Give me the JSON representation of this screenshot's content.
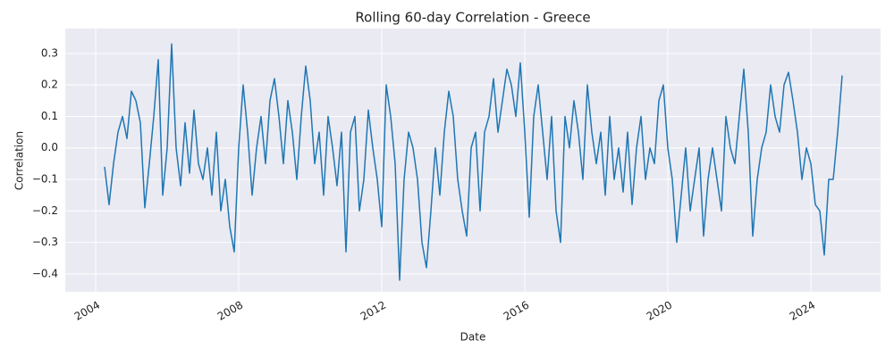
{
  "chart_data": {
    "type": "line",
    "title": "Rolling 60-day Correlation - Greece",
    "xlabel": "Date",
    "ylabel": "Correlation",
    "x": [
      2004.25,
      2004.375,
      2004.5,
      2004.625,
      2004.75,
      2004.875,
      2005,
      2005.125,
      2005.25,
      2005.375,
      2005.5,
      2005.625,
      2005.75,
      2005.875,
      2006,
      2006.125,
      2006.25,
      2006.375,
      2006.5,
      2006.625,
      2006.75,
      2006.875,
      2007,
      2007.125,
      2007.25,
      2007.375,
      2007.5,
      2007.625,
      2007.75,
      2007.875,
      2008,
      2008.125,
      2008.25,
      2008.375,
      2008.5,
      2008.625,
      2008.75,
      2008.875,
      2009,
      2009.125,
      2009.25,
      2009.375,
      2009.5,
      2009.625,
      2009.75,
      2009.875,
      2010,
      2010.125,
      2010.25,
      2010.375,
      2010.5,
      2010.625,
      2010.75,
      2010.875,
      2011,
      2011.125,
      2011.25,
      2011.375,
      2011.5,
      2011.625,
      2011.75,
      2011.875,
      2012,
      2012.125,
      2012.25,
      2012.375,
      2012.5,
      2012.625,
      2012.75,
      2012.875,
      2013,
      2013.125,
      2013.25,
      2013.375,
      2013.5,
      2013.625,
      2013.75,
      2013.875,
      2014,
      2014.125,
      2014.25,
      2014.375,
      2014.5,
      2014.625,
      2014.75,
      2014.875,
      2015,
      2015.125,
      2015.25,
      2015.375,
      2015.5,
      2015.625,
      2015.75,
      2015.875,
      2016,
      2016.125,
      2016.25,
      2016.375,
      2016.5,
      2016.625,
      2016.75,
      2016.875,
      2017,
      2017.125,
      2017.25,
      2017.375,
      2017.5,
      2017.625,
      2017.75,
      2017.875,
      2018,
      2018.125,
      2018.25,
      2018.375,
      2018.5,
      2018.625,
      2018.75,
      2018.875,
      2019,
      2019.125,
      2019.25,
      2019.375,
      2019.5,
      2019.625,
      2019.75,
      2019.875,
      2020,
      2020.125,
      2020.25,
      2020.375,
      2020.5,
      2020.625,
      2020.75,
      2020.875,
      2021,
      2021.125,
      2021.25,
      2021.375,
      2021.5,
      2021.625,
      2021.75,
      2021.875,
      2022,
      2022.125,
      2022.25,
      2022.375,
      2022.5,
      2022.625,
      2022.75,
      2022.875,
      2023,
      2023.125,
      2023.25,
      2023.375,
      2023.5,
      2023.625,
      2023.75,
      2023.875,
      2024,
      2024.125,
      2024.25,
      2024.375,
      2024.5,
      2024.625,
      2024.75,
      2024.875
    ],
    "series": [
      {
        "name": "Greece",
        "color": "#1f77b4",
        "values": [
          -0.06,
          -0.18,
          -0.05,
          0.05,
          0.1,
          0.03,
          0.18,
          0.15,
          0.08,
          -0.19,
          -0.05,
          0.1,
          0.28,
          -0.15,
          0.0,
          0.33,
          0.0,
          -0.12,
          0.08,
          -0.08,
          0.12,
          -0.05,
          -0.1,
          0.0,
          -0.15,
          0.05,
          -0.2,
          -0.1,
          -0.25,
          -0.33,
          0.0,
          0.2,
          0.05,
          -0.15,
          0.0,
          0.1,
          -0.05,
          0.15,
          0.22,
          0.1,
          -0.05,
          0.15,
          0.05,
          -0.1,
          0.1,
          0.26,
          0.15,
          -0.05,
          0.05,
          -0.15,
          0.1,
          0.0,
          -0.12,
          0.05,
          -0.33,
          0.05,
          0.1,
          -0.2,
          -0.1,
          0.12,
          0.0,
          -0.1,
          -0.25,
          0.2,
          0.1,
          -0.05,
          -0.42,
          -0.1,
          0.05,
          0.0,
          -0.1,
          -0.3,
          -0.38,
          -0.2,
          0.0,
          -0.15,
          0.05,
          0.18,
          0.1,
          -0.1,
          -0.2,
          -0.28,
          0.0,
          0.05,
          -0.2,
          0.05,
          0.1,
          0.22,
          0.05,
          0.15,
          0.25,
          0.2,
          0.1,
          0.27,
          0.05,
          -0.22,
          0.1,
          0.2,
          0.05,
          -0.1,
          0.1,
          -0.2,
          -0.3,
          0.1,
          0.0,
          0.15,
          0.05,
          -0.1,
          0.2,
          0.05,
          -0.05,
          0.05,
          -0.15,
          0.1,
          -0.1,
          0.0,
          -0.14,
          0.05,
          -0.18,
          0.0,
          0.1,
          -0.1,
          0.0,
          -0.05,
          0.15,
          0.2,
          0.0,
          -0.1,
          -0.3,
          -0.15,
          0.0,
          -0.2,
          -0.1,
          0.0,
          -0.28,
          -0.1,
          0.0,
          -0.1,
          -0.2,
          0.1,
          0.0,
          -0.05,
          0.1,
          0.25,
          0.05,
          -0.28,
          -0.1,
          0.0,
          0.05,
          0.2,
          0.1,
          0.05,
          0.2,
          0.24,
          0.15,
          0.05,
          -0.1,
          0.0,
          -0.05,
          -0.18,
          -0.2,
          -0.34,
          -0.1,
          -0.1,
          0.05,
          0.23
        ]
      }
    ],
    "xlim": [
      2003.15,
      2025.95
    ],
    "xticks": [
      2004,
      2008,
      2012,
      2016,
      2020,
      2024
    ],
    "ylim": [
      -0.457,
      0.379
    ],
    "yticks": [
      {
        "value": -0.4,
        "label": "−0.4"
      },
      {
        "value": -0.3,
        "label": "−0.3"
      },
      {
        "value": -0.2,
        "label": "−0.2"
      },
      {
        "value": -0.1,
        "label": "−0.1"
      },
      {
        "value": 0,
        "label": "0.0"
      },
      0.1,
      0.2,
      0.3
    ],
    "grid": true
  }
}
